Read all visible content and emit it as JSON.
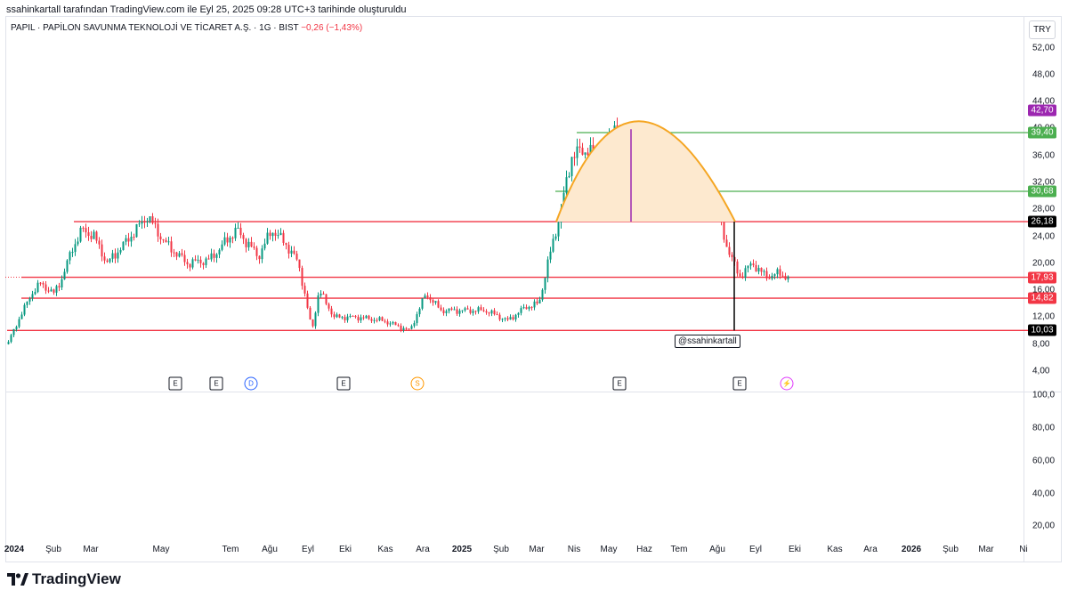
{
  "header": {
    "published_line": "ssahinkartall tarafından TradingView.com ile Eyl 25, 2025 09:28 UTC+3 tarihinde oluşturuldu",
    "symbol_text": "PAPIL · PAPİLON SAVUNMA TEKNOLOJİ VE TİCARET A.Ş. · 1G · BIST",
    "change_text": "−0,26 (−1,43%)"
  },
  "currency_button": "TRY",
  "price_axis": [
    "52,00",
    "48,00",
    "44,00",
    "40,00",
    "36,00",
    "32,00",
    "28,00",
    "24,00",
    "20,00",
    "16,00",
    "12,00",
    "8,00",
    "4,00"
  ],
  "lower_axis": [
    "100,0",
    "80,00",
    "60,00",
    "40,00",
    "20,00"
  ],
  "time_axis": [
    {
      "label": "2024",
      "bold": true
    },
    {
      "label": "Şub"
    },
    {
      "label": "Mar"
    },
    {
      "label": "May"
    },
    {
      "label": "Tem"
    },
    {
      "label": "Ağu"
    },
    {
      "label": "Eyl"
    },
    {
      "label": "Eki"
    },
    {
      "label": "Kas"
    },
    {
      "label": "Ara"
    },
    {
      "label": "2025",
      "bold": true
    },
    {
      "label": "Şub"
    },
    {
      "label": "Mar"
    },
    {
      "label": "Nis"
    },
    {
      "label": "May"
    },
    {
      "label": "Haz"
    },
    {
      "label": "Tem"
    },
    {
      "label": "Ağu"
    },
    {
      "label": "Eyl"
    },
    {
      "label": "Eki"
    },
    {
      "label": "Kas"
    },
    {
      "label": "Ara"
    },
    {
      "label": "2026",
      "bold": true
    },
    {
      "label": "Şub"
    },
    {
      "label": "Mar"
    },
    {
      "label": "Ni"
    }
  ],
  "level_badges": [
    {
      "value": "42,70",
      "color": "#9c27b0"
    },
    {
      "value": "39,40",
      "color": "#4caf50"
    },
    {
      "value": "30,68",
      "color": "#4caf50"
    },
    {
      "value": "26,18",
      "color": "#000000"
    },
    {
      "value": "17,93",
      "color": "#f23645"
    },
    {
      "value": "14,82",
      "color": "#f23645"
    },
    {
      "value": "10,03",
      "color": "#000000"
    }
  ],
  "event_markers": [
    {
      "label": "E",
      "kind": "earnings"
    },
    {
      "label": "E",
      "kind": "earnings"
    },
    {
      "label": "D",
      "kind": "dividend"
    },
    {
      "label": "E",
      "kind": "earnings"
    },
    {
      "label": "S",
      "kind": "split"
    },
    {
      "label": "E",
      "kind": "earnings"
    },
    {
      "label": "E",
      "kind": "earnings"
    },
    {
      "label": "⚡",
      "kind": "news"
    }
  ],
  "watermark_label": "@ssahinkartall",
  "brand": "TradingView",
  "colors": {
    "up": "#089981",
    "down": "#f23645",
    "support": "#f23645",
    "resistance": "#4caf50",
    "dome": "#f5a623",
    "dome_fill": "#fde9cf",
    "purple": "#9c27b0"
  }
}
